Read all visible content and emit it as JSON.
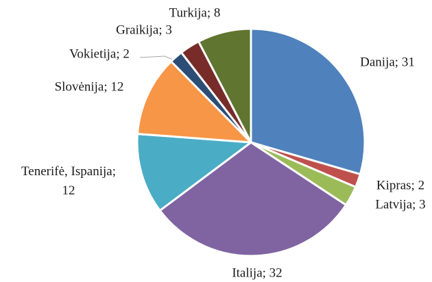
{
  "chart_data": {
    "type": "pie",
    "labels": [
      "Danija; 31",
      "Kipras; 2",
      "Latvija; 3",
      "Italija; 32",
      "Tenerifė, Ispanija;\n12",
      "Slovėnija; 12",
      "Vokietija; 2",
      "Graikija; 3",
      "Turkija; 8"
    ],
    "values": [
      31,
      2,
      3,
      32,
      12,
      12,
      2,
      3,
      8
    ],
    "colors": [
      "#4f81bd",
      "#c0504d",
      "#9bbb59",
      "#8064a2",
      "#4bacc6",
      "#f79646",
      "#2c4d75",
      "#772c2a",
      "#5f7530"
    ]
  }
}
